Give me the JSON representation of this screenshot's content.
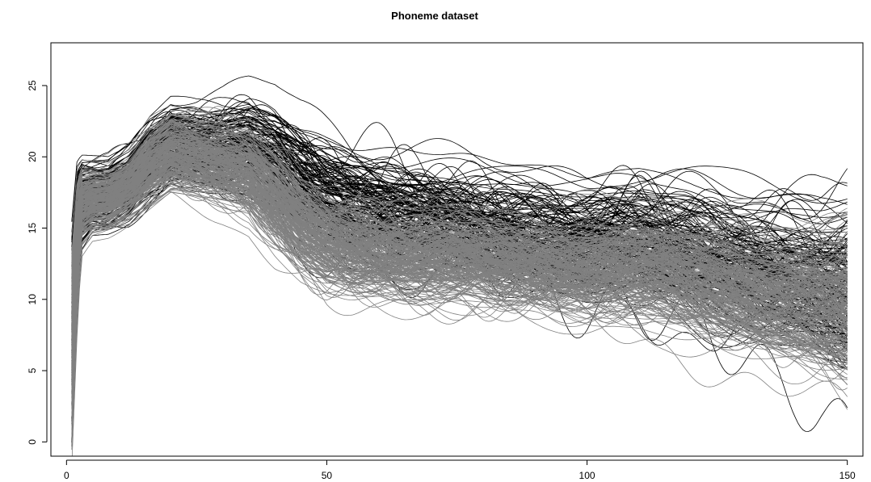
{
  "chart_data": {
    "type": "line",
    "title": "Phoneme dataset",
    "xlabel": "",
    "ylabel": "",
    "xlim": [
      -3,
      153
    ],
    "ylim": [
      -1,
      28
    ],
    "x_ticks": [
      0,
      50,
      100,
      150
    ],
    "y_ticks": [
      0,
      5,
      10,
      15,
      20,
      25
    ],
    "grid": false,
    "legend": "none",
    "x_domain": [
      1,
      150
    ],
    "series": [
      {
        "color": "#000000",
        "description_hidden": true,
        "profile_x": [
          1,
          2,
          3,
          5,
          8,
          12,
          16,
          20,
          25,
          30,
          35,
          40,
          45,
          50,
          55,
          60,
          65,
          70,
          75,
          80,
          85,
          90,
          95,
          100,
          105,
          110,
          115,
          120,
          125,
          130,
          135,
          140,
          145,
          150
        ],
        "mean_y": [
          9.5,
          14.5,
          16.8,
          17.3,
          17.4,
          18.2,
          19.8,
          21.0,
          20.6,
          20.4,
          20.6,
          19.6,
          18.2,
          17.2,
          16.6,
          16.2,
          15.9,
          15.6,
          15.2,
          14.8,
          14.5,
          14.2,
          14.0,
          13.8,
          14.0,
          14.1,
          13.8,
          13.3,
          12.8,
          12.3,
          11.8,
          11.4,
          11.0,
          10.6
        ],
        "spread": [
          3.0,
          2.2,
          1.4,
          1.2,
          1.2,
          1.3,
          1.5,
          1.5,
          1.6,
          1.8,
          2.0,
          2.4,
          2.6,
          2.8,
          2.9,
          3.0,
          3.0,
          3.0,
          3.0,
          3.0,
          3.0,
          3.0,
          3.0,
          3.0,
          3.0,
          3.0,
          3.0,
          3.0,
          3.0,
          3.0,
          3.0,
          3.0,
          3.1,
          3.4
        ],
        "curve_count": 160
      },
      {
        "color": "#808080",
        "profile_x": [
          1,
          2,
          3,
          5,
          8,
          12,
          16,
          20,
          25,
          30,
          35,
          40,
          45,
          50,
          55,
          60,
          65,
          70,
          75,
          80,
          85,
          90,
          95,
          100,
          105,
          110,
          115,
          120,
          125,
          130,
          135,
          140,
          145,
          150
        ],
        "mean_y": [
          9.0,
          14.2,
          16.6,
          17.0,
          17.1,
          17.9,
          19.4,
          20.4,
          20.0,
          19.6,
          19.0,
          17.2,
          15.3,
          14.2,
          13.7,
          13.4,
          13.2,
          13.2,
          13.1,
          12.9,
          12.7,
          12.5,
          12.3,
          12.2,
          12.4,
          12.4,
          12.1,
          11.6,
          11.2,
          10.8,
          10.4,
          10.1,
          9.8,
          9.6
        ],
        "spread": [
          3.0,
          2.2,
          1.4,
          1.2,
          1.2,
          1.3,
          1.6,
          1.7,
          1.8,
          2.0,
          2.2,
          2.5,
          2.5,
          2.6,
          2.6,
          2.6,
          2.6,
          2.6,
          2.6,
          2.6,
          2.6,
          2.6,
          2.6,
          2.6,
          2.6,
          2.6,
          2.6,
          2.6,
          2.6,
          2.6,
          2.6,
          2.6,
          2.7,
          2.9
        ],
        "curve_count": 240
      }
    ]
  }
}
